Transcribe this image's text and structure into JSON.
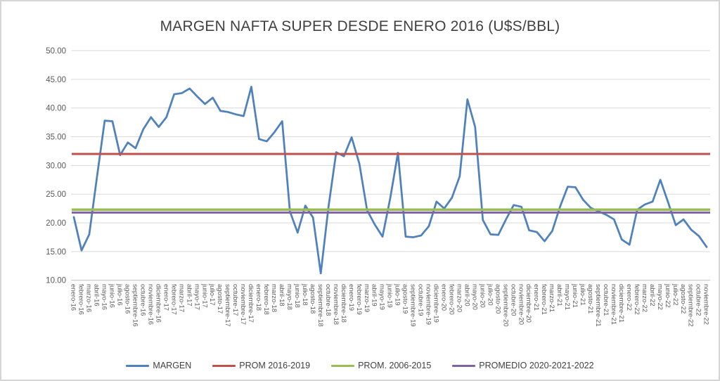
{
  "title": "MARGEN NAFTA SUPER DESDE ENERO 2016 (U$S/BBL)",
  "style": {
    "grid_color": "#d9d9d9",
    "axis_line_color": "#bfbfbf",
    "axis_text_color": "#595959",
    "title_color": "#404040",
    "frame_color": "#d6d6d6",
    "background": "#ffffff"
  },
  "legend": [
    {
      "label": "MARGEN",
      "color": "#4f81bd"
    },
    {
      "label": "PROM 2016-2019",
      "color": "#c0504d"
    },
    {
      "label": "PROM. 2006-2015",
      "color": "#9bbb59"
    },
    {
      "label": "PROMEDIO 2020-2021-2022",
      "color": "#8064a2"
    }
  ],
  "chart_data": {
    "type": "line",
    "title": "MARGEN NAFTA SUPER DESDE ENERO 2016 (U$S/BBL)",
    "xlabel": "",
    "ylabel": "",
    "ylim": [
      10,
      50
    ],
    "ytick_step": 5,
    "ytick_labels": [
      "10.00",
      "15.00",
      "20.00",
      "25.00",
      "30.00",
      "35.00",
      "40.00",
      "45.00",
      "50.00"
    ],
    "grid": true,
    "legend_position": "bottom",
    "categories": [
      "enero-16",
      "febrero-16",
      "marzo-16",
      "abril-16",
      "mayo-16",
      "junio-16",
      "julio-16",
      "agosto-16",
      "septiembre-16",
      "octubre-16",
      "noviembre-16",
      "diciembre-16",
      "enero-17",
      "febrero-17",
      "marzo-17",
      "abril-17",
      "mayo-17",
      "junio-17",
      "julio-17",
      "agosto-17",
      "septiembre-17",
      "octubre-17",
      "noviembre-17",
      "diciembre-17",
      "enero-18",
      "febrero-18",
      "marzo-18",
      "abril-18",
      "mayo-18",
      "junio-18",
      "julio-18",
      "agosto-18",
      "septiembre-18",
      "octubre-18",
      "noviembre-18",
      "diciembre-18",
      "enero-19",
      "febrero-19",
      "marzo-19",
      "abril-19",
      "mayo-19",
      "junio-19",
      "julio-19",
      "agosto-19",
      "septiembre-19",
      "octubre-19",
      "noviembre-19",
      "diciembre-19",
      "enero-20",
      "febrero-20",
      "marzo-20",
      "abril-20",
      "mayo-20",
      "junio-20",
      "julio-20",
      "agosto-20",
      "septiembre-20",
      "octubre-20",
      "noviembre-20",
      "diciembre-20",
      "enero-21",
      "febrero-21",
      "marzo-21",
      "abril-21",
      "mayo-21",
      "junio-21",
      "julio-21",
      "agosto-21",
      "septiembre-21",
      "octubre-21",
      "noviembre-21",
      "diciembre-21",
      "enero-22",
      "febrero-22",
      "marzo-22",
      "abril-22",
      "mayo-22",
      "junio-22",
      "julio-22",
      "agosto-22",
      "septiembre-22",
      "octubre-22",
      "noviembre-22"
    ],
    "series": [
      {
        "name": "MARGEN",
        "color": "#4f81bd",
        "stroke_width": 2.75,
        "values": [
          21.0,
          15.2,
          18.0,
          28.0,
          37.8,
          37.7,
          31.8,
          34.0,
          33.0,
          36.3,
          38.4,
          36.7,
          38.4,
          42.4,
          42.6,
          43.4,
          42.0,
          40.7,
          41.8,
          39.5,
          39.3,
          38.9,
          38.6,
          43.7,
          34.6,
          34.2,
          35.8,
          37.7,
          22.0,
          18.3,
          23.0,
          20.9,
          11.2,
          22.8,
          32.3,
          31.6,
          34.9,
          30.3,
          22.2,
          19.7,
          17.6,
          24.3,
          32.2,
          17.6,
          17.5,
          17.8,
          19.4,
          23.7,
          22.5,
          24.4,
          28.1,
          41.5,
          36.7,
          20.5,
          18.0,
          17.9,
          20.6,
          23.1,
          22.8,
          18.7,
          18.4,
          16.8,
          18.6,
          22.8,
          26.3,
          26.2,
          24.0,
          22.6,
          22.0,
          21.4,
          20.6,
          17.1,
          16.2,
          22.3,
          23.2,
          23.7,
          27.5,
          23.6,
          19.6,
          20.6,
          18.8,
          17.7,
          15.8
        ]
      },
      {
        "name": "PROM 2016-2019",
        "color": "#c0504d",
        "stroke_width": 3,
        "value": 32.0
      },
      {
        "name": "PROM. 2006-2015",
        "color": "#9bbb59",
        "stroke_width": 3.5,
        "value": 22.3
      },
      {
        "name": "PROMEDIO 2020-2021-2022",
        "color": "#8064a2",
        "stroke_width": 3,
        "value": 21.8
      }
    ]
  }
}
